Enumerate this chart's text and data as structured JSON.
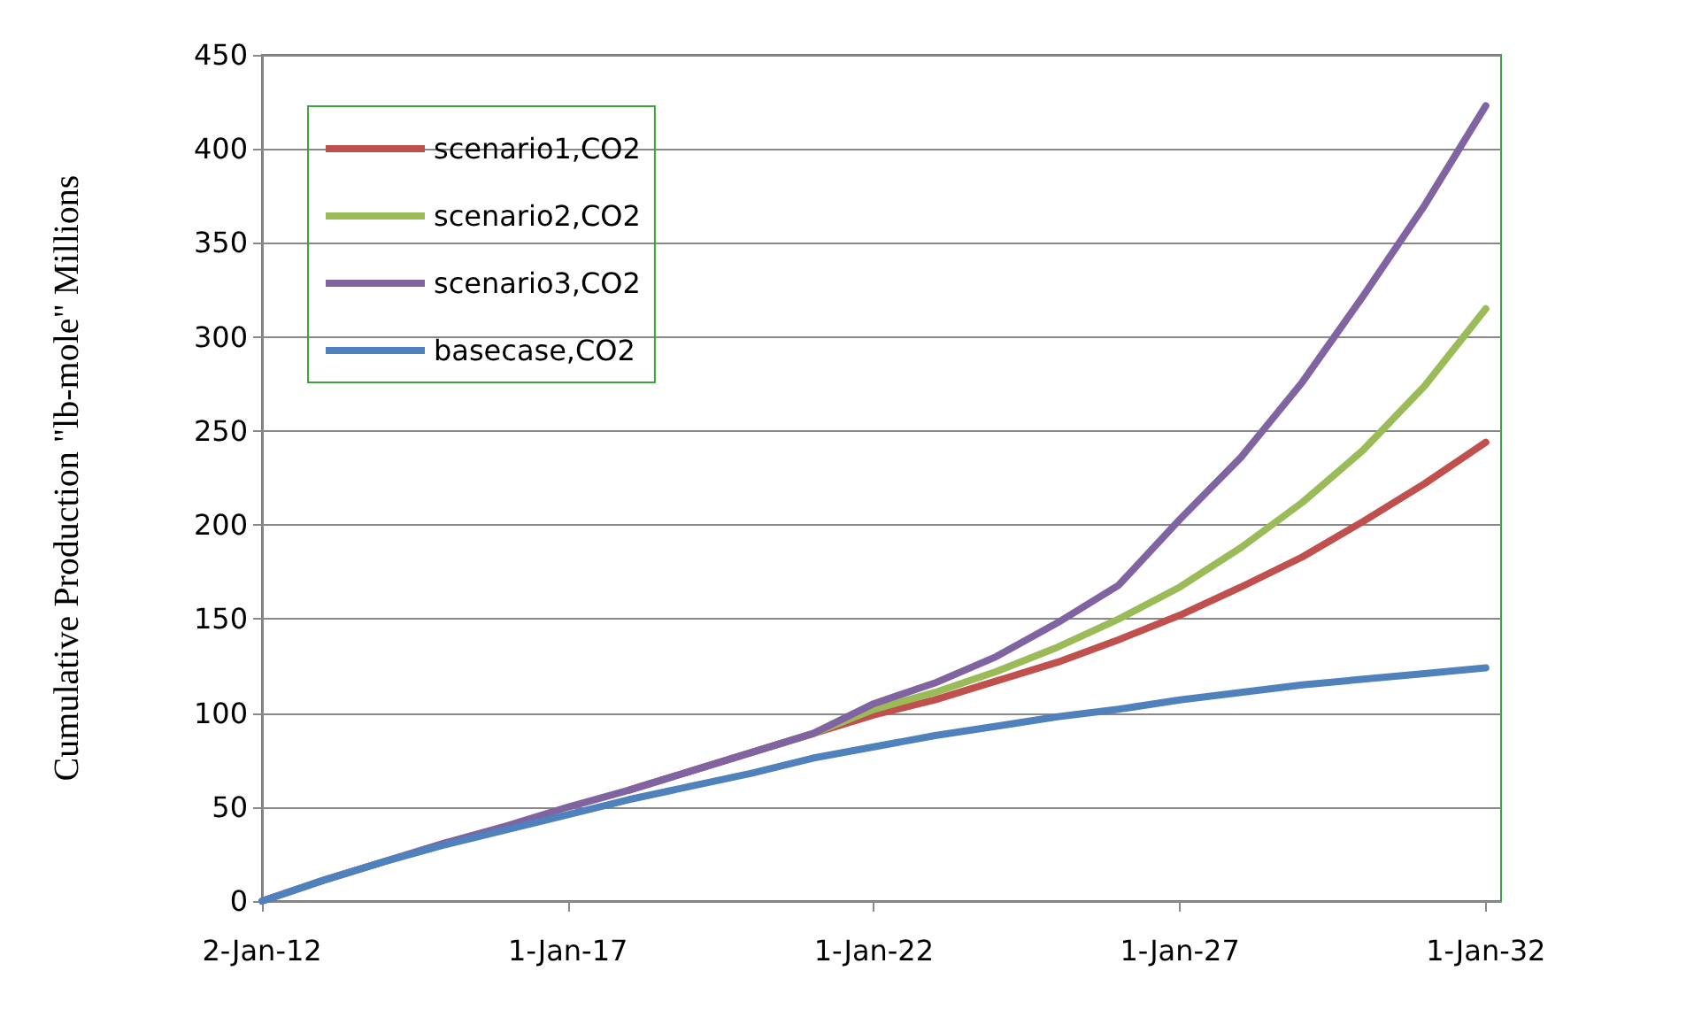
{
  "chart_data": {
    "type": "line",
    "ylabel": "Cumulative Production \"lb-mole\" Millions",
    "x": [
      "2012-01-02",
      "2013-01-01",
      "2014-01-01",
      "2015-01-01",
      "2016-01-01",
      "2017-01-01",
      "2018-01-01",
      "2019-01-01",
      "2020-01-01",
      "2021-01-01",
      "2022-01-01",
      "2023-01-01",
      "2024-01-01",
      "2025-01-01",
      "2026-01-01",
      "2027-01-01",
      "2028-01-01",
      "2029-01-01",
      "2030-01-01",
      "2031-01-01",
      "2032-01-01"
    ],
    "series": [
      {
        "name": "scenario1,CO2",
        "color": "#c0504d",
        "values": [
          null,
          null,
          null,
          null,
          null,
          null,
          59,
          69,
          79,
          89,
          99,
          107,
          117,
          127,
          139,
          152,
          167,
          183,
          202,
          222,
          244
        ]
      },
      {
        "name": "scenario2,CO2",
        "color": "#9bbb59",
        "values": [
          null,
          null,
          null,
          null,
          null,
          null,
          null,
          null,
          79,
          89,
          102,
          111,
          122,
          135,
          150,
          167,
          188,
          212,
          240,
          274,
          315
        ]
      },
      {
        "name": "scenario3,CO2",
        "color": "#8064a2",
        "values": [
          0,
          11,
          21,
          31,
          40,
          50,
          59,
          69,
          79,
          89,
          105,
          116,
          130,
          148,
          168,
          203,
          236,
          276,
          322,
          370,
          423
        ]
      },
      {
        "name": "basecase,CO2",
        "color": "#4f81bd",
        "values": [
          0,
          11,
          21,
          30,
          38,
          46,
          54,
          61,
          68,
          76,
          82,
          88,
          93,
          98,
          102,
          107,
          111,
          115,
          118,
          121,
          124
        ]
      }
    ],
    "xlim": [
      "2012-01-02",
      "2032-04-01"
    ],
    "xticks": [
      {
        "value": "2012-01-02",
        "label": "2-Jan-12"
      },
      {
        "value": "2017-01-01",
        "label": "1-Jan-17"
      },
      {
        "value": "2022-01-01",
        "label": "1-Jan-22"
      },
      {
        "value": "2027-01-01",
        "label": "1-Jan-27"
      },
      {
        "value": "2032-01-01",
        "label": "1-Jan-32"
      }
    ],
    "ylim": [
      0,
      450
    ],
    "yticks": [
      0,
      50,
      100,
      150,
      200,
      250,
      300,
      350,
      400,
      450
    ],
    "grid": "y",
    "legend": "top left",
    "marker": "none",
    "line_style": "solid"
  }
}
